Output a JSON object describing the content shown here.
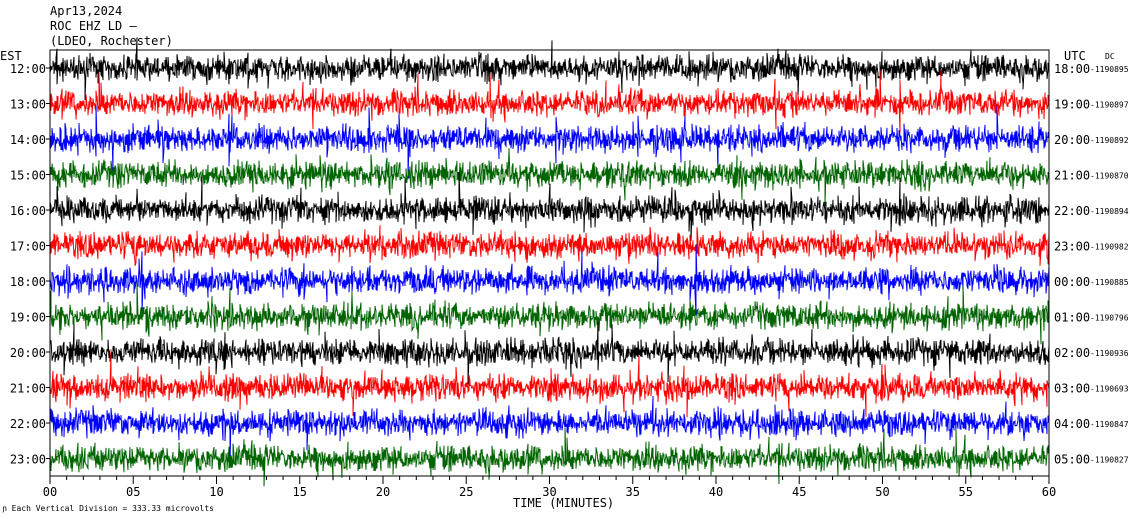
{
  "header": {
    "date": "Apr13,2024",
    "station": "ROC EHZ LD",
    "network": "(LDEO, Rochester)"
  },
  "left_axis_label": "EST",
  "right_axis_label": "UTC",
  "dc_label": "DC",
  "footer_scale": "Each Vertical Division =  333.33 microvolts",
  "chart_data": {
    "type": "line",
    "xlabel": "TIME (MINUTES)",
    "x_ticks": [
      "00",
      "05",
      "10",
      "15",
      "20",
      "25",
      "30",
      "35",
      "40",
      "45",
      "50",
      "55",
      "60"
    ],
    "xlim": [
      0,
      60
    ],
    "rows": [
      {
        "est": "12:00",
        "utc": "18:00",
        "dc": "-1190895",
        "color": "#000000"
      },
      {
        "est": "13:00",
        "utc": "19:00",
        "dc": "-1190897",
        "color": "#ff0000"
      },
      {
        "est": "14:00",
        "utc": "20:00",
        "dc": "-1190892",
        "color": "#0000ff"
      },
      {
        "est": "15:00",
        "utc": "21:00",
        "dc": "-1190870",
        "color": "#006400"
      },
      {
        "est": "16:00",
        "utc": "22:00",
        "dc": "-1190894",
        "color": "#000000"
      },
      {
        "est": "17:00",
        "utc": "23:00",
        "dc": "-1190982",
        "color": "#ff0000"
      },
      {
        "est": "18:00",
        "utc": "00:00",
        "dc": "-1190885",
        "color": "#0000ff"
      },
      {
        "est": "19:00",
        "utc": "01:00",
        "dc": "-1190796",
        "color": "#006400"
      },
      {
        "est": "20:00",
        "utc": "02:00",
        "dc": "-1190936",
        "color": "#000000"
      },
      {
        "est": "21:00",
        "utc": "03:00",
        "dc": "-1190693",
        "color": "#ff0000"
      },
      {
        "est": "22:00",
        "utc": "04:00",
        "dc": "-1190847",
        "color": "#0000ff"
      },
      {
        "est": "23:00",
        "utc": "05:00",
        "dc": "-1190827",
        "color": "#006400"
      }
    ]
  }
}
